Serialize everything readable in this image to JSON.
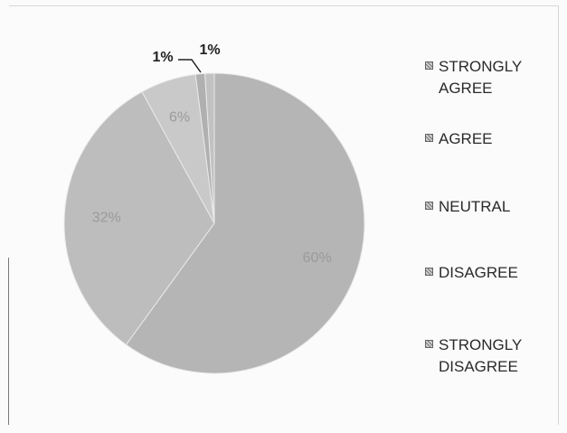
{
  "chart_data": {
    "type": "pie",
    "categories": [
      "STRONGLY AGREE",
      "AGREE",
      "NEUTRAL",
      "DISAGREE",
      "STRONGLY DISAGREE"
    ],
    "values": [
      60,
      32,
      6,
      1,
      1
    ],
    "value_labels": [
      "60%",
      "32%",
      "6%",
      "1%",
      "1%"
    ],
    "title": "",
    "legend_position": "right",
    "colors": [
      "#b5b5b5",
      "#bdbdbd",
      "#c9c9c9",
      "#b0b0b0",
      "#c2c2c2"
    ],
    "legend": [
      {
        "line1": "STRONGLY",
        "line2": "AGREE"
      },
      {
        "line1": "AGREE",
        "line2": ""
      },
      {
        "line1": "NEUTRAL",
        "line2": ""
      },
      {
        "line1": "DISAGREE",
        "line2": ""
      },
      {
        "line1": "STRONGLY",
        "line2": "DISAGREE"
      }
    ]
  }
}
